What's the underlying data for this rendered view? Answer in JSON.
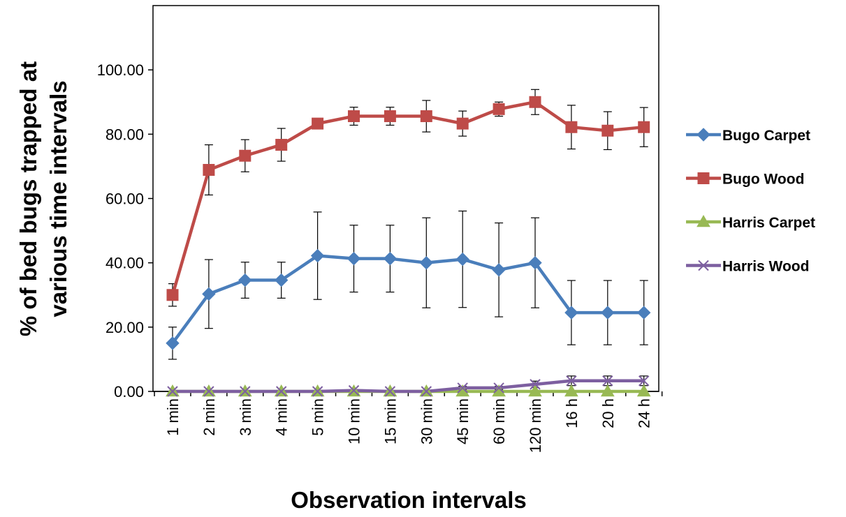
{
  "chart_data": {
    "type": "line",
    "title": "",
    "xlabel": "Observation intervals",
    "ylabel_lines": [
      "% of bed bugs trapped at",
      "various time intervals"
    ],
    "categories": [
      "1 min",
      "2 min",
      "3 min",
      "4 min",
      "5 min",
      "10 min",
      "15 min",
      "30 min",
      "45 min",
      "60 min",
      "120 min",
      "16 h",
      "20 h",
      "24 h"
    ],
    "ylim": [
      0,
      120
    ],
    "yticks": [
      "0.00",
      "20.00",
      "40.00",
      "60.00",
      "80.00",
      "100.00"
    ],
    "ytick_values": [
      0,
      20,
      40,
      60,
      80,
      100
    ],
    "grid": false,
    "legend_position": "right",
    "series": [
      {
        "name": "Bugo Carpet",
        "color": "#4a7ebb",
        "marker": "diamond",
        "values": [
          15.0,
          30.3,
          34.6,
          34.6,
          42.2,
          41.3,
          41.3,
          40.0,
          41.1,
          37.8,
          40.0,
          24.5,
          24.5,
          24.5
        ],
        "error": [
          5.0,
          10.7,
          5.6,
          5.6,
          13.6,
          10.4,
          10.4,
          14.0,
          15.0,
          14.6,
          14.0,
          10.0,
          10.0,
          10.0
        ]
      },
      {
        "name": "Bugo Wood",
        "color": "#be4b48",
        "marker": "square",
        "values": [
          30.0,
          68.9,
          73.3,
          76.7,
          83.3,
          85.6,
          85.6,
          85.6,
          83.3,
          87.8,
          90.0,
          82.2,
          81.1,
          82.2
        ],
        "error": [
          3.5,
          7.8,
          5.0,
          5.1,
          0.0,
          2.8,
          2.8,
          4.9,
          3.9,
          2.2,
          3.9,
          6.8,
          5.9,
          6.1
        ]
      },
      {
        "name": "Harris Carpet",
        "color": "#98b954",
        "marker": "triangle",
        "values": [
          0,
          0,
          0,
          0,
          0,
          0,
          0,
          0,
          0,
          0,
          0,
          0,
          0,
          0
        ],
        "error": [
          0,
          0,
          0,
          0,
          0,
          0,
          0,
          0,
          0,
          0,
          0,
          0,
          0,
          0
        ]
      },
      {
        "name": "Harris Wood",
        "color": "#7d5fa0",
        "marker": "x",
        "values": [
          0,
          0,
          0,
          0,
          0,
          0.3,
          0,
          0,
          1.1,
          1.1,
          2.2,
          3.3,
          3.3,
          3.3
        ],
        "error": [
          0,
          0,
          0,
          0,
          0,
          0,
          0,
          0,
          0.5,
          0.5,
          1.0,
          1.5,
          1.5,
          1.5
        ]
      }
    ]
  }
}
